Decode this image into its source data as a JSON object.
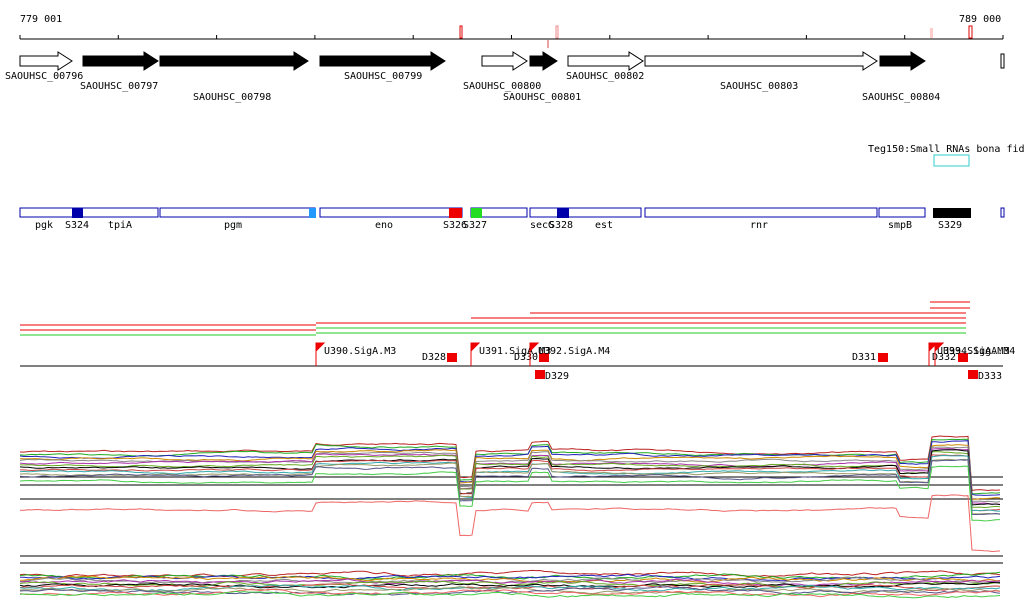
{
  "ruler": {
    "start": "779 001",
    "end": "789 000"
  },
  "genes": [
    "SAOUHSC_00796",
    "SAOUHSC_00797",
    "SAOUHSC_00798",
    "SAOUHSC_00799",
    "SAOUHSC_00800",
    "SAOUHSC_00801",
    "SAOUHSC_00802",
    "SAOUHSC_00803",
    "SAOUHSC_00804"
  ],
  "track_label": "Teg150:Small RNAs bona fid",
  "features": [
    "pgk",
    "S324",
    "tpiA",
    "pgm",
    "eno",
    "S326",
    "S327",
    "secG",
    "S328",
    "est",
    "rnr",
    "smpB",
    "S329"
  ],
  "promoters": [
    "U390.SigA.M3",
    "D328",
    "U391.SigA.M3",
    "D330",
    "U392.SigA.M4",
    "D329",
    "D331",
    "U393.SigA.M3",
    "D332",
    "U394.SigA.M4",
    "D333"
  ]
}
